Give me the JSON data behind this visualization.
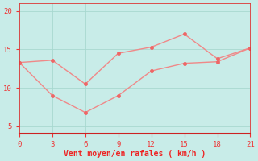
{
  "line1_x": [
    0,
    3,
    6,
    9,
    12,
    15,
    18,
    21
  ],
  "line1_y": [
    13.3,
    13.6,
    10.5,
    14.5,
    15.3,
    17.0,
    13.8,
    15.2
  ],
  "line2_x": [
    0,
    3,
    6,
    9,
    12,
    15,
    18,
    21
  ],
  "line2_y": [
    13.3,
    9.0,
    6.8,
    9.0,
    12.2,
    13.2,
    13.4,
    15.2
  ],
  "line_color": "#f08888",
  "marker_color": "#ee6666",
  "background_color": "#c8ece8",
  "xlabel": "Vent moyen/en rafales ( km/h )",
  "xlabel_color": "#ee2222",
  "axis_color": "#dd3333",
  "tick_color": "#ee3333",
  "grid_color": "#a8d8d0",
  "bottom_spine_color": "#cc2222",
  "ylim": [
    4,
    21
  ],
  "xlim": [
    0,
    21
  ],
  "yticks": [
    5,
    10,
    15,
    20
  ],
  "xticks": [
    0,
    3,
    6,
    9,
    12,
    15,
    18,
    21
  ],
  "xlabel_fontsize": 7,
  "tick_fontsize": 6.5,
  "linewidth": 1.0,
  "markersize": 3.0
}
